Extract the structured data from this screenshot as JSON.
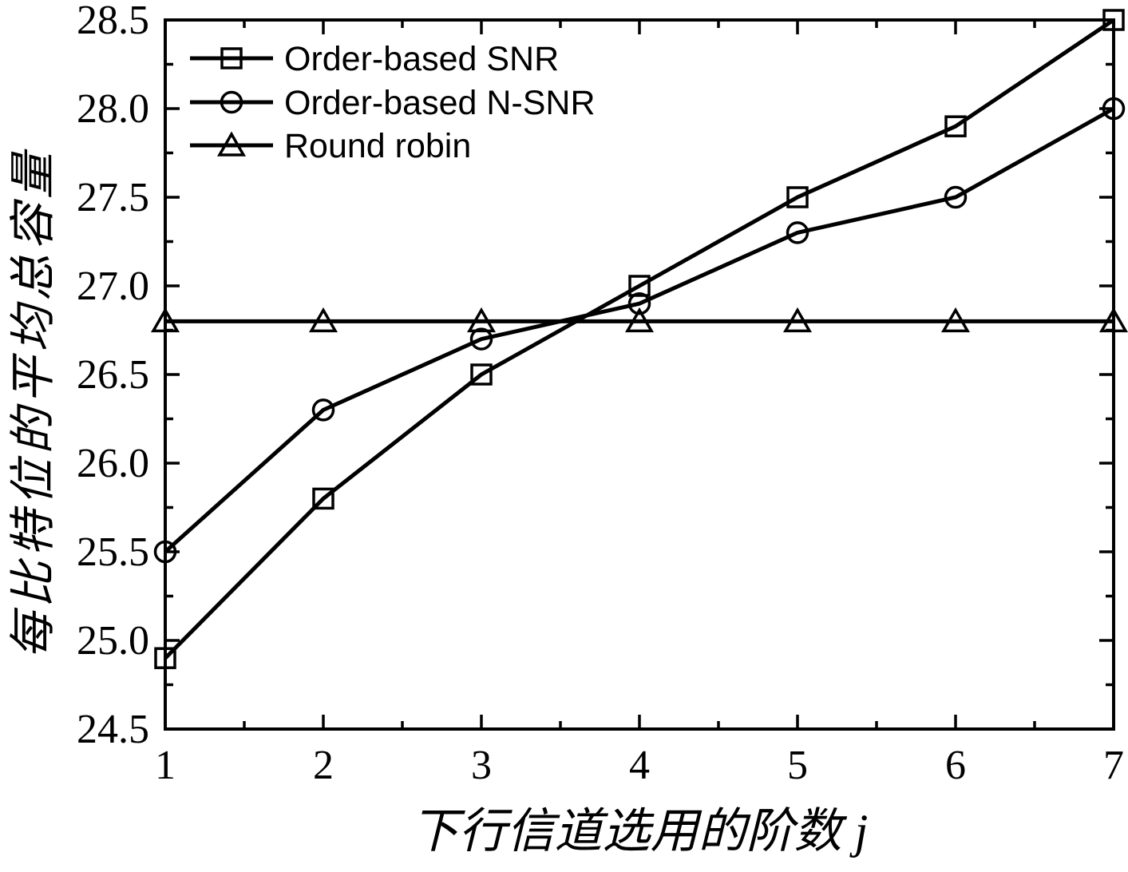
{
  "page": {
    "background": "#ffffff",
    "ink": "#000000"
  },
  "chart_data": {
    "type": "line",
    "title": "",
    "xlabel": "下行信道选用的阶数 j",
    "xlabel_text": "下行信道选用的阶数",
    "xlabel_italic_suffix": "j",
    "ylabel": "每比特位的平均总容量",
    "xlim": [
      1,
      7
    ],
    "ylim": [
      24.5,
      28.5
    ],
    "x": [
      1,
      2,
      3,
      4,
      5,
      6,
      7
    ],
    "x_tick_labels": [
      "1",
      "2",
      "3",
      "4",
      "5",
      "6",
      "7"
    ],
    "x_minor_ticks": [
      1.5,
      2.5,
      3.5,
      4.5,
      5.5,
      6.5
    ],
    "y_major_ticks": [
      24.5,
      25.0,
      25.5,
      26.0,
      26.5,
      27.0,
      27.5,
      28.0,
      28.5
    ],
    "y_tick_labels": [
      "24.5",
      "25.0",
      "25.5",
      "26.0",
      "26.5",
      "27.0",
      "27.5",
      "28.0",
      "28.5"
    ],
    "y_minor_ticks": [
      24.75,
      25.25,
      25.75,
      26.25,
      26.75,
      27.25,
      27.75,
      28.25
    ],
    "grid": false,
    "legend_position": "top-left",
    "series": [
      {
        "name": "Order-based SNR",
        "marker": "square",
        "color": "#000000",
        "values": [
          24.9,
          25.8,
          26.5,
          27.0,
          27.5,
          27.9,
          28.5
        ]
      },
      {
        "name": "Order-based N-SNR",
        "marker": "circle",
        "color": "#000000",
        "values": [
          25.5,
          26.3,
          26.7,
          26.9,
          27.3,
          27.5,
          28.0
        ]
      },
      {
        "name": "Round robin",
        "marker": "triangle",
        "color": "#000000",
        "values": [
          26.8,
          26.8,
          26.8,
          26.8,
          26.8,
          26.8,
          26.8
        ]
      }
    ]
  }
}
